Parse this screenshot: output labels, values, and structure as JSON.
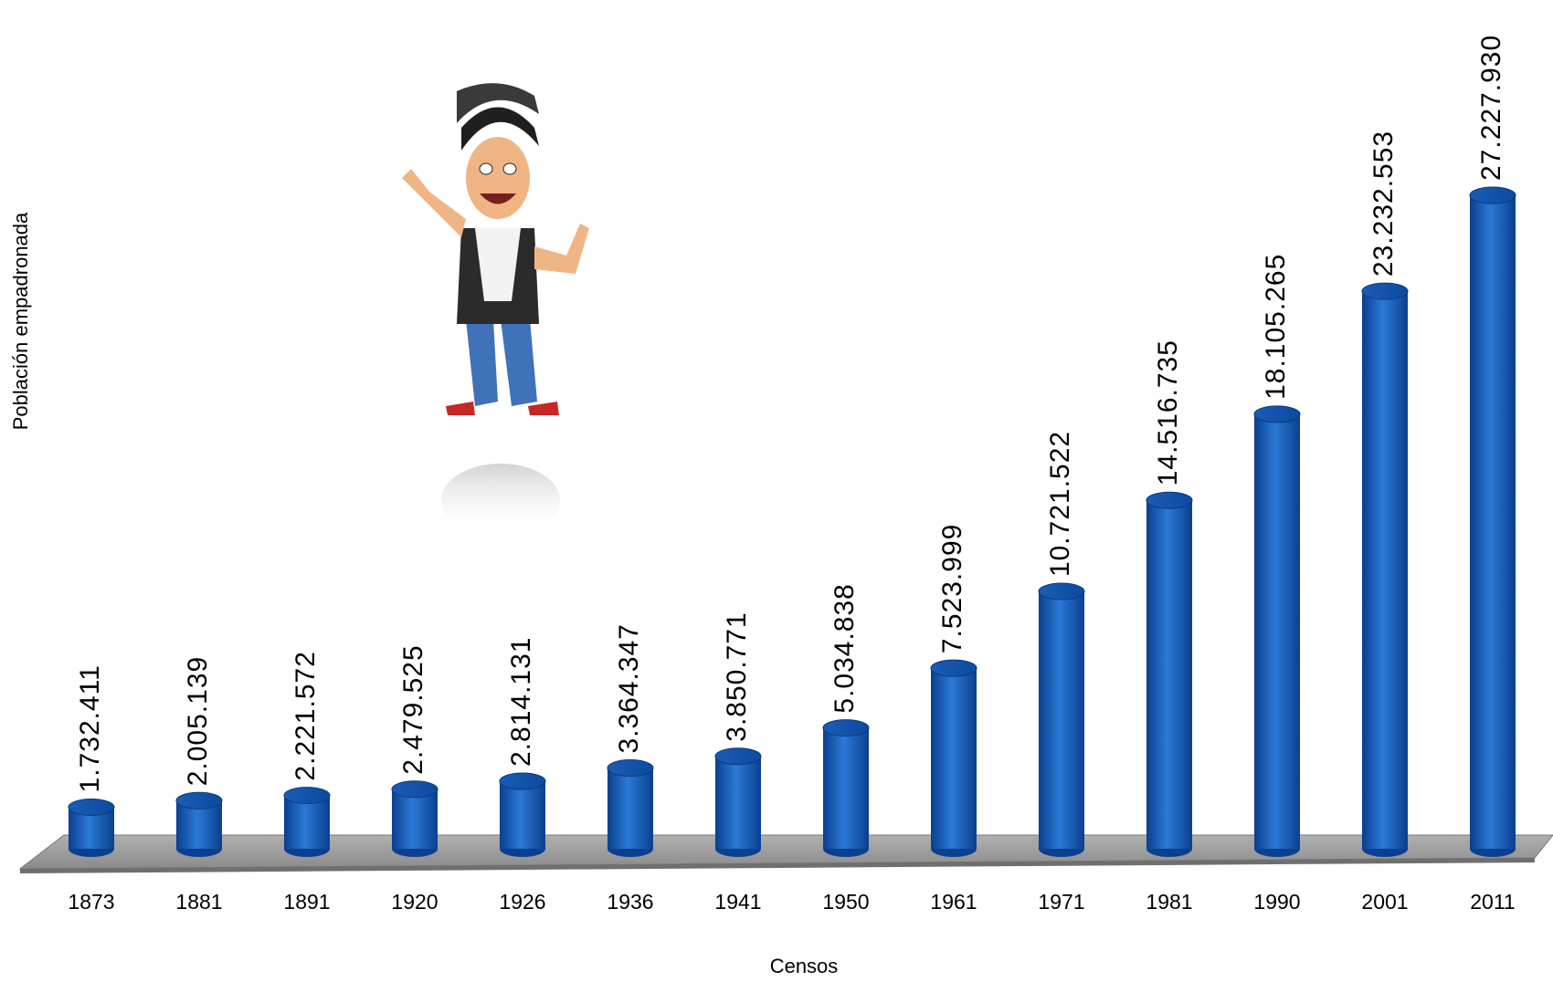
{
  "chart_data": {
    "type": "bar",
    "x_label": "Censos",
    "y_label": "Población empadronada",
    "color": "#1565c0",
    "categories": [
      "1873",
      "1881",
      "1891",
      "1920",
      "1926",
      "1936",
      "1941",
      "1950",
      "1961",
      "1971",
      "1981",
      "1990",
      "2001",
      "2011"
    ],
    "values": [
      1732411,
      2005139,
      2221572,
      2479525,
      2814131,
      3364347,
      3850771,
      5034838,
      7523999,
      10721522,
      14516735,
      18105265,
      23232553,
      27227930
    ],
    "value_labels": [
      "1.732.411",
      "2.005.139",
      "2.221.572",
      "2.479.525",
      "2.814.131",
      "3.364.347",
      "3.850.771",
      "5.034.838",
      "7.523.999",
      "10.721.522",
      "14.516.735",
      "18.105.265",
      "23.232.553",
      "27.227.930"
    ]
  }
}
